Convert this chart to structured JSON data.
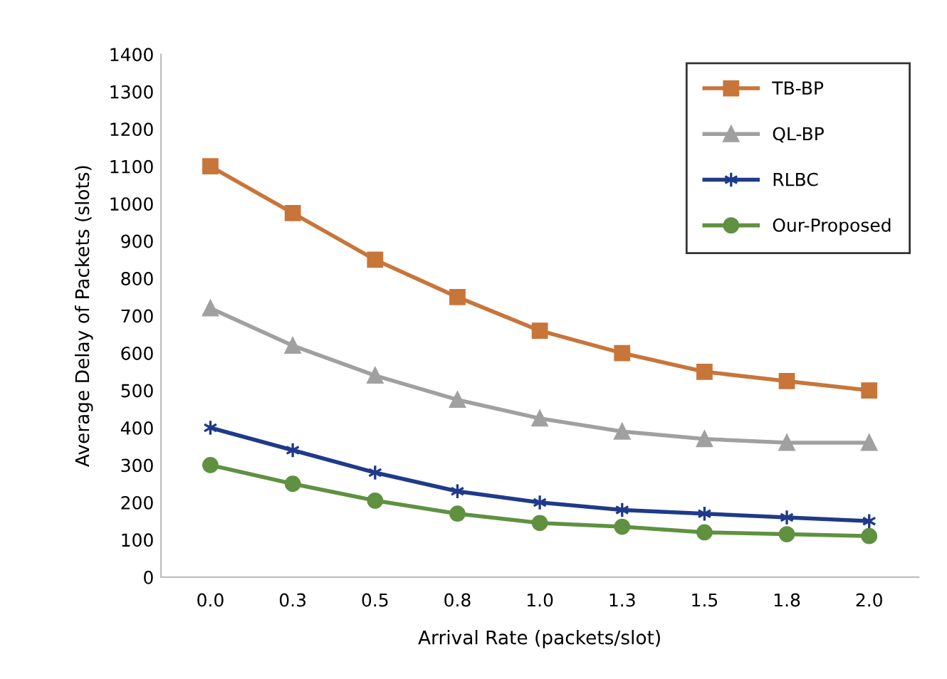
{
  "chart_data": {
    "type": "line",
    "xlabel": "Arrival Rate (packets/slot)",
    "ylabel": "Average Delay of Packets (slots)",
    "categories": [
      "0.0",
      "0.3",
      "0.5",
      "0.8",
      "1.0",
      "1.3",
      "1.5",
      "1.8",
      "2.0"
    ],
    "series": [
      {
        "name": "TB-BP",
        "color": "#c8753a",
        "marker": "square",
        "values": [
          1100,
          975,
          850,
          750,
          660,
          600,
          550,
          525,
          500
        ]
      },
      {
        "name": "QL-BP",
        "color": "#a0a0a0",
        "marker": "triangle",
        "values": [
          720,
          620,
          540,
          475,
          425,
          390,
          370,
          360,
          360
        ]
      },
      {
        "name": "RLBC",
        "color": "#1f3a8a",
        "marker": "cross",
        "values": [
          400,
          340,
          280,
          230,
          200,
          180,
          170,
          160,
          150
        ]
      },
      {
        "name": "Our-Proposed",
        "color": "#5f9140",
        "marker": "circle",
        "values": [
          300,
          250,
          205,
          170,
          145,
          135,
          120,
          115,
          110
        ]
      }
    ],
    "ylim": [
      0,
      1400
    ],
    "yticks": [
      0,
      100,
      200,
      300,
      400,
      500,
      600,
      700,
      800,
      900,
      1000,
      1100,
      1200,
      1300,
      1400
    ],
    "grid": false,
    "legend": "top right",
    "line_style": "solid"
  }
}
